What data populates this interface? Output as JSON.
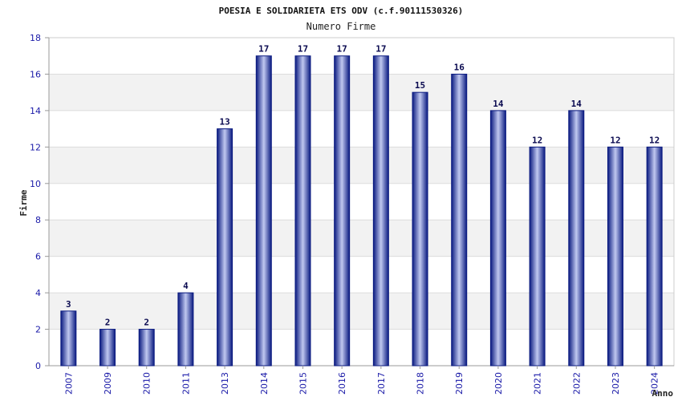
{
  "chart_data": {
    "type": "bar",
    "title": "POESIA E SOLIDARIETA ETS ODV (c.f.90111530326)",
    "subtitle": "Numero Firme",
    "xlabel": "Anno",
    "ylabel": "Firme",
    "categories": [
      "2007",
      "2009",
      "2010",
      "2011",
      "2013",
      "2014",
      "2015",
      "2016",
      "2017",
      "2018",
      "2019",
      "2020",
      "2021",
      "2022",
      "2023",
      "2024"
    ],
    "values": [
      3,
      2,
      2,
      4,
      13,
      17,
      17,
      17,
      17,
      15,
      16,
      14,
      12,
      14,
      12,
      12
    ],
    "ylim": [
      0,
      18
    ],
    "yticks": [
      0,
      2,
      4,
      6,
      8,
      10,
      12,
      14,
      16,
      18
    ],
    "grid": true,
    "colors": {
      "bar_dark": "#0a1a80",
      "bar_light": "#c0c8f0",
      "band": "#f2f2f2",
      "tick": "#1a1aa8"
    }
  }
}
